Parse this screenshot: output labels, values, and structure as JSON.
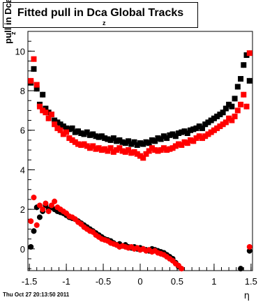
{
  "title": {
    "main": "Fitted pull in Dca Global Tracks",
    "subscript": "z"
  },
  "footer": "Thu Oct 27 20:13:50 2011",
  "chart_data": {
    "type": "scatter",
    "title": "Fitted pull in Dca Global Tracks",
    "xlabel": "η",
    "ylabel": "pull in Dca",
    "ylabel_subscript": "z",
    "xlim": [
      -1.52,
      1.52
    ],
    "ylim": [
      -1.1,
      11.0
    ],
    "x_ticks": [
      -1.5,
      -1,
      -0.5,
      0,
      0.5,
      1,
      1.5
    ],
    "x_tick_labels": [
      "-1.5",
      "-1",
      "-0.5",
      "0",
      "0.5",
      "1",
      "1.5"
    ],
    "y_ticks": [
      0,
      2,
      4,
      6,
      8,
      10
    ],
    "y_tick_labels": [
      "0",
      "2",
      "4",
      "6",
      "8",
      "10"
    ],
    "grid": false,
    "colors": {
      "black_series": "#000000",
      "red_series": "#ff0000"
    },
    "series": [
      {
        "marker": "square",
        "color": "#000000",
        "x": [
          -1.48,
          -1.44,
          -1.4,
          -1.36,
          -1.32,
          -1.28,
          -1.24,
          -1.2,
          -1.16,
          -1.12,
          -1.08,
          -1.04,
          -1.0,
          -0.96,
          -0.92,
          -0.88,
          -0.84,
          -0.8,
          -0.76,
          -0.72,
          -0.68,
          -0.64,
          -0.6,
          -0.56,
          -0.52,
          -0.48,
          -0.44,
          -0.4,
          -0.36,
          -0.32,
          -0.28,
          -0.24,
          -0.2,
          -0.16,
          -0.12,
          -0.08,
          -0.04,
          0.0,
          0.04,
          0.08,
          0.12,
          0.16,
          0.2,
          0.24,
          0.28,
          0.32,
          0.36,
          0.4,
          0.44,
          0.48,
          0.52,
          0.56,
          0.6,
          0.64,
          0.68,
          0.72,
          0.76,
          0.8,
          0.84,
          0.88,
          0.92,
          0.96,
          1.0,
          1.04,
          1.08,
          1.12,
          1.16,
          1.2,
          1.24,
          1.28,
          1.32,
          1.36,
          1.4,
          1.44,
          1.48
        ],
        "y": [
          8.4,
          9.1,
          8.1,
          7.3,
          7.8,
          7.1,
          6.9,
          6.8,
          6.5,
          6.4,
          6.3,
          6.2,
          6.1,
          6.05,
          6.1,
          5.9,
          5.95,
          5.85,
          5.8,
          5.9,
          5.75,
          5.8,
          5.7,
          5.65,
          5.7,
          5.6,
          5.55,
          5.5,
          5.6,
          5.45,
          5.5,
          5.4,
          5.35,
          5.45,
          5.3,
          5.4,
          5.25,
          5.35,
          5.3,
          5.4,
          5.35,
          5.5,
          5.45,
          5.6,
          5.55,
          5.7,
          5.6,
          5.75,
          5.8,
          5.7,
          5.85,
          5.9,
          5.95,
          5.85,
          6.0,
          6.05,
          6.1,
          6.2,
          6.1,
          6.3,
          6.4,
          6.5,
          6.6,
          6.7,
          6.8,
          6.9,
          7.1,
          7.3,
          7.2,
          7.6,
          8.2,
          8.6,
          9.3,
          9.8,
          8.5
        ]
      },
      {
        "marker": "square",
        "color": "#ff0000",
        "x": [
          -1.48,
          -1.44,
          -1.4,
          -1.36,
          -1.32,
          -1.28,
          -1.24,
          -1.2,
          -1.16,
          -1.12,
          -1.08,
          -1.04,
          -1.0,
          -0.96,
          -0.92,
          -0.88,
          -0.84,
          -0.8,
          -0.76,
          -0.72,
          -0.68,
          -0.64,
          -0.6,
          -0.56,
          -0.52,
          -0.48,
          -0.44,
          -0.4,
          -0.36,
          -0.32,
          -0.28,
          -0.24,
          -0.2,
          -0.16,
          -0.12,
          -0.08,
          -0.04,
          0.0,
          0.04,
          0.08,
          0.12,
          0.16,
          0.2,
          0.24,
          0.28,
          0.32,
          0.36,
          0.4,
          0.44,
          0.48,
          0.52,
          0.56,
          0.6,
          0.64,
          0.68,
          0.72,
          0.76,
          0.8,
          0.84,
          0.88,
          0.92,
          0.96,
          1.0,
          1.04,
          1.08,
          1.12,
          1.16,
          1.2,
          1.24,
          1.28,
          1.32,
          1.36,
          1.4,
          1.44,
          1.48
        ],
        "y": [
          8.5,
          9.6,
          8.3,
          7.2,
          7.0,
          6.9,
          6.6,
          6.8,
          6.3,
          6.1,
          6.0,
          5.8,
          5.9,
          5.6,
          5.5,
          5.4,
          5.3,
          5.25,
          5.3,
          5.2,
          5.1,
          5.2,
          5.05,
          5.1,
          5.0,
          5.05,
          4.95,
          5.1,
          4.9,
          5.0,
          5.1,
          4.95,
          4.9,
          5.0,
          4.85,
          4.9,
          4.8,
          4.7,
          4.6,
          4.8,
          4.95,
          5.1,
          5.0,
          4.95,
          5.0,
          5.1,
          5.0,
          5.05,
          5.1,
          5.2,
          5.3,
          5.25,
          5.4,
          5.35,
          5.5,
          5.45,
          5.6,
          5.7,
          5.6,
          5.7,
          5.8,
          5.9,
          6.0,
          6.1,
          6.2,
          6.3,
          6.4,
          6.6,
          6.5,
          6.7,
          7.0,
          7.3,
          7.8,
          7.2,
          9.9
        ]
      },
      {
        "marker": "circle",
        "color": "#000000",
        "x": [
          -1.48,
          -1.44,
          -1.4,
          -1.36,
          -1.32,
          -1.28,
          -1.24,
          -1.2,
          -1.16,
          -1.12,
          -1.08,
          -1.04,
          -1.0,
          -0.96,
          -0.92,
          -0.88,
          -0.84,
          -0.8,
          -0.76,
          -0.72,
          -0.68,
          -0.64,
          -0.6,
          -0.56,
          -0.52,
          -0.48,
          -0.44,
          -0.4,
          -0.36,
          -0.32,
          -0.28,
          -0.24,
          -0.2,
          -0.16,
          -0.12,
          -0.08,
          -0.04,
          0.0,
          0.04,
          0.08,
          0.12,
          0.16,
          0.2,
          0.24,
          0.28,
          0.32,
          0.36,
          0.4,
          0.44,
          0.48,
          0.52,
          1.36,
          1.48
        ],
        "y": [
          0.1,
          0.9,
          2.1,
          1.6,
          1.9,
          2.2,
          2.0,
          2.1,
          2.0,
          1.9,
          1.85,
          1.8,
          1.7,
          1.6,
          1.55,
          1.5,
          1.4,
          1.3,
          1.2,
          1.1,
          1.0,
          0.9,
          0.8,
          0.7,
          0.6,
          0.5,
          0.45,
          0.4,
          0.3,
          0.2,
          0.25,
          0.15,
          0.2,
          0.1,
          0.05,
          0.1,
          0.0,
          0.05,
          0.0,
          -0.05,
          -0.1,
          0.0,
          -0.05,
          -0.1,
          -0.15,
          -0.2,
          -0.3,
          -0.4,
          -0.5,
          -0.7,
          -0.9,
          -1.0,
          -0.1
        ]
      },
      {
        "marker": "circle",
        "color": "#ff0000",
        "x": [
          -1.48,
          -1.44,
          -1.4,
          -1.36,
          -1.32,
          -1.28,
          -1.24,
          -1.2,
          -1.16,
          -1.12,
          -1.08,
          -1.04,
          -1.0,
          -0.96,
          -0.92,
          -0.88,
          -0.84,
          -0.8,
          -0.76,
          -0.72,
          -0.68,
          -0.64,
          -0.6,
          -0.56,
          -0.52,
          -0.48,
          -0.44,
          -0.4,
          -0.36,
          -0.32,
          -0.28,
          -0.24,
          -0.2,
          -0.16,
          -0.12,
          -0.08,
          -0.04,
          0.0,
          0.04,
          0.08,
          0.12,
          0.16,
          0.2,
          0.24,
          0.28,
          0.32,
          0.36,
          0.4,
          0.44,
          0.48,
          0.52,
          0.56,
          1.48
        ],
        "y": [
          1.4,
          2.6,
          1.2,
          2.2,
          2.0,
          2.3,
          1.9,
          2.2,
          2.4,
          2.1,
          2.0,
          1.9,
          1.8,
          1.65,
          1.6,
          1.5,
          1.35,
          1.25,
          1.1,
          1.0,
          0.9,
          0.85,
          0.7,
          0.6,
          0.5,
          0.45,
          0.4,
          0.3,
          0.25,
          0.2,
          0.1,
          0.15,
          0.1,
          0.05,
          0.1,
          0.0,
          0.05,
          -0.05,
          0.0,
          -0.1,
          -0.05,
          -0.15,
          -0.1,
          -0.2,
          -0.25,
          -0.3,
          -0.4,
          -0.5,
          -0.6,
          -0.75,
          -0.85,
          -1.0,
          0.1
        ]
      }
    ]
  }
}
